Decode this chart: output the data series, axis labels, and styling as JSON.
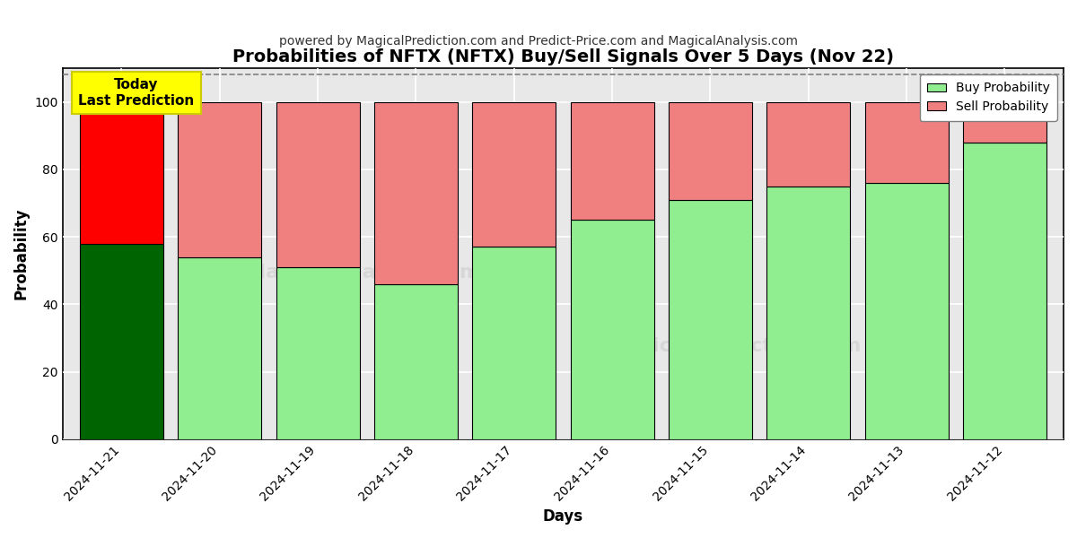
{
  "title": "Probabilities of NFTX (NFTX) Buy/Sell Signals Over 5 Days (Nov 22)",
  "subtitle": "powered by MagicalPrediction.com and Predict-Price.com and MagicalAnalysis.com",
  "xlabel": "Days",
  "ylabel": "Probability",
  "dates": [
    "2024-11-21",
    "2024-11-20",
    "2024-11-19",
    "2024-11-18",
    "2024-11-17",
    "2024-11-16",
    "2024-11-15",
    "2024-11-14",
    "2024-11-13",
    "2024-11-12"
  ],
  "buy_values": [
    58,
    54,
    51,
    46,
    57,
    65,
    71,
    75,
    76,
    88
  ],
  "sell_values": [
    42,
    46,
    49,
    54,
    43,
    35,
    29,
    25,
    24,
    12
  ],
  "today_buy_color": "#006400",
  "today_sell_color": "#FF0000",
  "buy_color": "#90EE90",
  "sell_color": "#F08080",
  "bar_edge_color": "#000000",
  "today_label_bg": "#FFFF00",
  "plot_bg_color": "#e8e8e8",
  "fig_bg_color": "#ffffff",
  "ylim": [
    0,
    110
  ],
  "yticks": [
    0,
    20,
    40,
    60,
    80,
    100
  ],
  "dashed_line_y": 108,
  "legend_buy_label": "Buy Probability",
  "legend_sell_label": "Sell Probability",
  "today_annotation": "Today\nLast Prediction",
  "grid_color": "#ffffff",
  "bar_width": 0.85
}
